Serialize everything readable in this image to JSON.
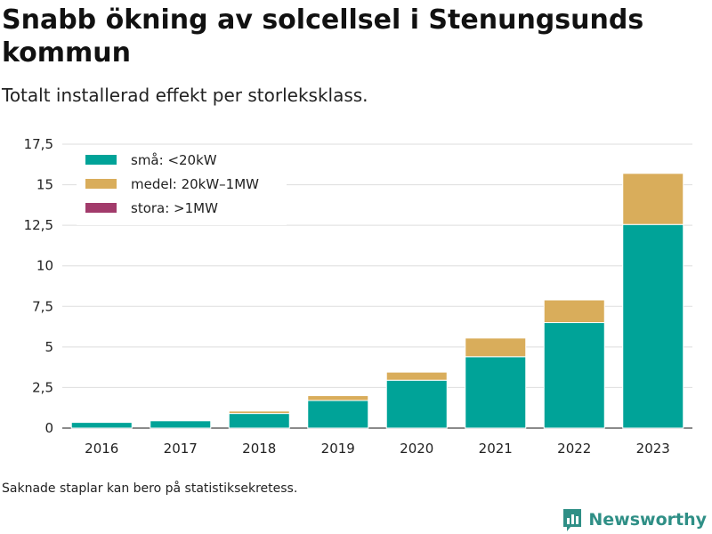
{
  "header": {
    "title": "Snabb ökning av solcellsel i Stenungsunds kommun",
    "subtitle": "Totalt installerad effekt per storleksklass."
  },
  "footer": {
    "note": "Saknade staplar kan bero på statistiksekretess.",
    "brand": "Newsworthy"
  },
  "icons": {
    "brand_logo": "bar-chart-logo-icon"
  },
  "colors": {
    "small": "#00a398",
    "medium": "#d9ad5b",
    "large": "#a23b6b",
    "grid": "#dddddd",
    "brand": "#2f8f86"
  },
  "chart_data": {
    "type": "bar",
    "stacked": true,
    "categories": [
      "2016",
      "2017",
      "2018",
      "2019",
      "2020",
      "2021",
      "2022",
      "2023"
    ],
    "series": [
      {
        "name": "små: <20kW",
        "color": "#00a398",
        "values": [
          0.35,
          0.45,
          0.9,
          1.7,
          2.95,
          4.4,
          6.5,
          12.55
        ]
      },
      {
        "name": "medel: 20kW–1MW",
        "color": "#d9ad5b",
        "values": [
          0,
          0,
          0.15,
          0.3,
          0.5,
          1.15,
          1.4,
          3.15
        ]
      },
      {
        "name": "stora: >1MW",
        "color": "#a23b6b",
        "values": [
          0,
          0,
          0,
          0,
          0,
          0,
          0,
          0
        ]
      }
    ],
    "yticks": [
      "0",
      "2,5",
      "5",
      "7,5",
      "10",
      "12,5",
      "15",
      "17,5"
    ],
    "ylim": [
      0,
      17.5
    ],
    "grid": true,
    "legend_position": "top-left"
  }
}
